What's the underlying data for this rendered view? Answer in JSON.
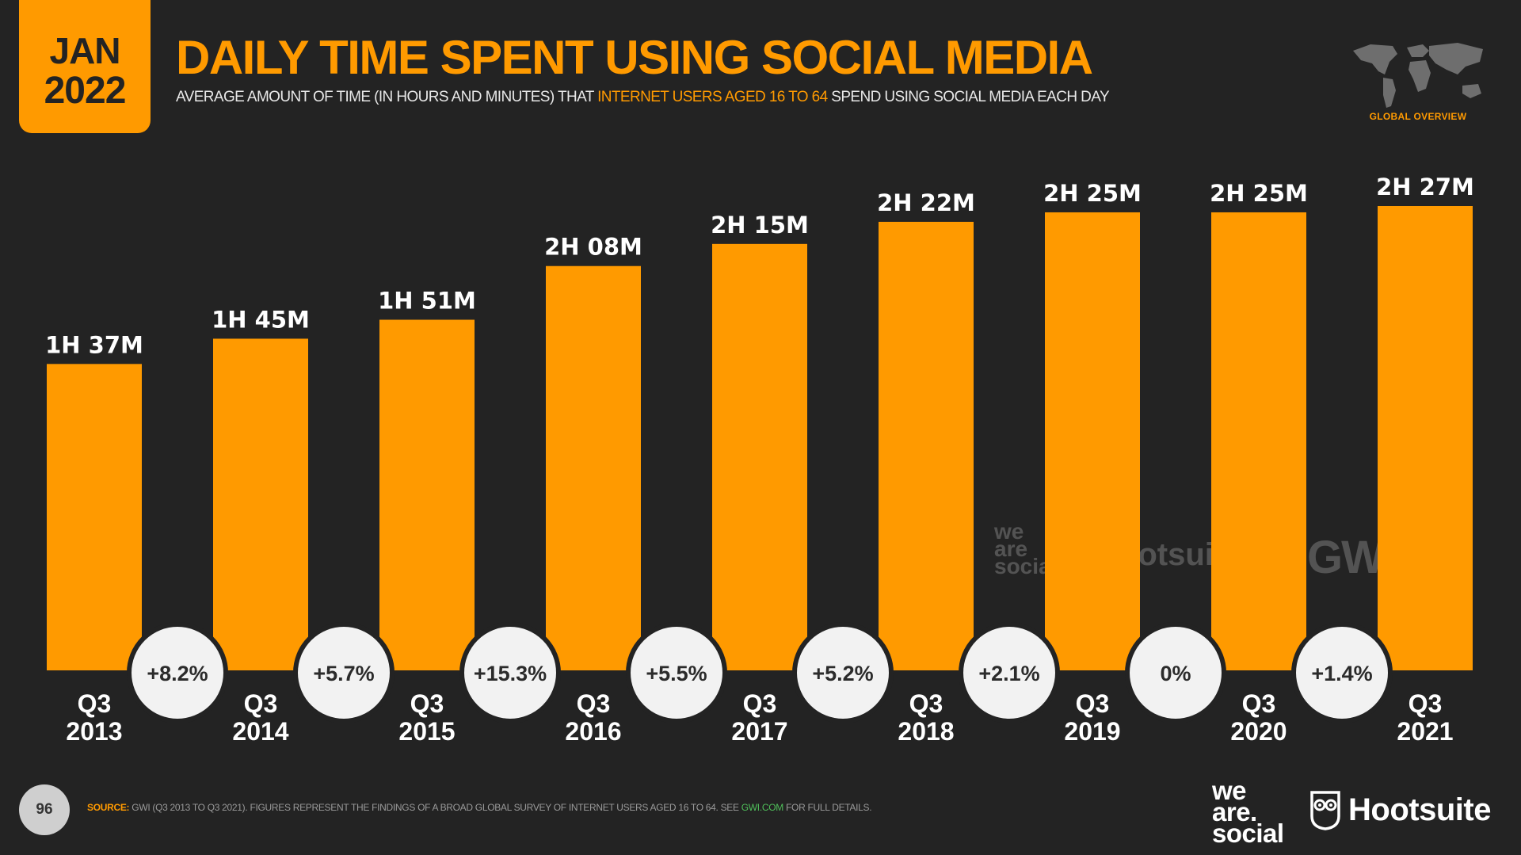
{
  "header": {
    "badge_month": "JAN",
    "badge_year": "2022",
    "title": "DAILY TIME SPENT USING SOCIAL MEDIA",
    "subtitle_pre": "AVERAGE AMOUNT OF TIME (IN HOURS AND MINUTES) THAT ",
    "subtitle_highlight": "INTERNET USERS AGED 16 TO 64",
    "subtitle_post": " SPEND USING SOCIAL MEDIA EACH DAY",
    "region_caption": "GLOBAL OVERVIEW",
    "region_icon": "world-map-icon"
  },
  "chart_data": {
    "type": "bar",
    "title": "DAILY TIME SPENT USING SOCIAL MEDIA",
    "categories": [
      "Q3 2013",
      "Q3 2014",
      "Q3 2015",
      "Q3 2016",
      "Q3 2017",
      "Q3 2018",
      "Q3 2019",
      "Q3 2020",
      "Q3 2021"
    ],
    "category_quarters": [
      "Q3",
      "Q3",
      "Q3",
      "Q3",
      "Q3",
      "Q3",
      "Q3",
      "Q3",
      "Q3"
    ],
    "category_years": [
      "2013",
      "2014",
      "2015",
      "2016",
      "2017",
      "2018",
      "2019",
      "2020",
      "2021"
    ],
    "values_minutes": [
      97,
      105,
      111,
      128,
      135,
      142,
      145,
      145,
      147
    ],
    "value_labels": [
      "1H 37M",
      "1H 45M",
      "1H 51M",
      "2H 08M",
      "2H 15M",
      "2H 22M",
      "2H 25M",
      "2H 25M",
      "2H 27M"
    ],
    "changes": [
      "+8.2%",
      "+5.7%",
      "+15.3%",
      "+5.5%",
      "+5.2%",
      "+2.1%",
      "0%",
      "+1.4%"
    ],
    "ylim": [
      0,
      147
    ],
    "grid": false,
    "legend": "none",
    "bar_color": "#ff9a00",
    "change_circle_color": "#f2f2f2"
  },
  "watermark": {
    "we": "we",
    "are": "are",
    "social": "social",
    "hootsuite": "Hootsuite",
    "gwi": "GWI."
  },
  "footer": {
    "page_number": "96",
    "source_label": "SOURCE:",
    "source_text": " GWI (Q3 2013 TO Q3 2021). FIGURES REPRESENT THE FINDINGS OF A BROAD GLOBAL SURVEY OF INTERNET USERS AGED 16 TO 64. SEE ",
    "source_link": "GWI.COM",
    "source_tail": " FOR FULL DETAILS.",
    "logo_we": "we",
    "logo_are": "are.",
    "logo_social": "social",
    "logo_hootsuite": "Hootsuite",
    "logo_hootsuite_mark": "owl-icon"
  },
  "colors": {
    "background": "#232323",
    "accent": "#ff9a00",
    "text": "#ffffff",
    "source_link": "#4fbf5a"
  }
}
